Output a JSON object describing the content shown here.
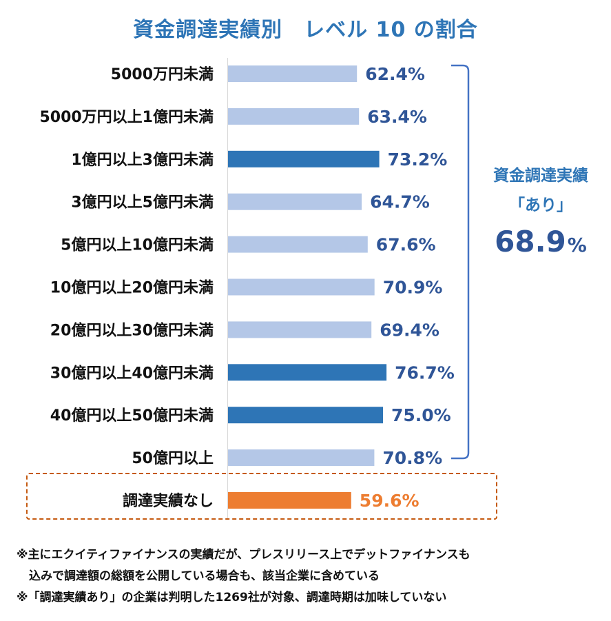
{
  "chart_data": {
    "type": "bar",
    "orientation": "horizontal",
    "title": "資金調達実績別　レベル 10 の割合",
    "categories": [
      "5000万円未満",
      "5000万円以上1億円未満",
      "1億円以上3億円未満",
      "3億円以上5億円未満",
      "5億円以上10億円未満",
      "10億円以上20億円未満",
      "20億円以上30億円未満",
      "30億円以上40億円未満",
      "40億円以上50億円未満",
      "50億円以上",
      "調達実績なし"
    ],
    "values": [
      62.4,
      63.4,
      73.2,
      64.7,
      67.6,
      70.9,
      69.4,
      76.7,
      75.0,
      70.8,
      59.6
    ],
    "value_labels": [
      "62.4%",
      "63.4%",
      "73.2%",
      "64.7%",
      "67.6%",
      "70.9%",
      "69.4%",
      "76.7%",
      "75.0%",
      "70.8%",
      "59.6%"
    ],
    "highlight": [
      false,
      false,
      true,
      false,
      false,
      false,
      false,
      true,
      true,
      false,
      false
    ],
    "no_funding_index": 10,
    "unit": "%",
    "colors": {
      "normal": "#b4c7e7",
      "highlight": "#2e75b6",
      "no_funding": "#ed7d31",
      "value_text": "#2f5597",
      "no_funding_text": "#ed7d31"
    },
    "summary": {
      "line1": "資金調達実績",
      "line2": "「あり」",
      "value": "68.9",
      "unit": "%"
    }
  },
  "notes": [
    "※主にエクイティファイナンスの実績だが、プレスリリース上でデットファイナンスも",
    "込みで調達額の総額を公開している場合も、該当企業に含めている",
    "※「調達実績あり」の企業は判明した1269社が対象、調達時期は加味していない"
  ]
}
